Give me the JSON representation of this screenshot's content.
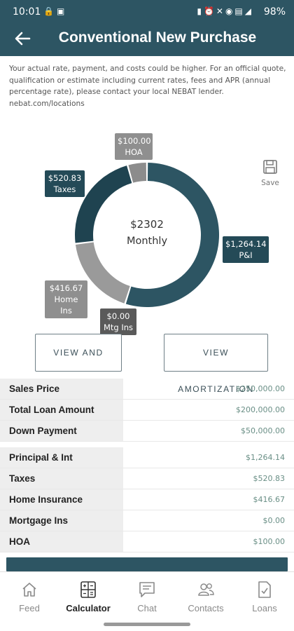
{
  "status_bar": {
    "time": "10:01",
    "battery": "98%"
  },
  "header": {
    "title": "Conventional New Purchase"
  },
  "disclaimer": "Your actual rate, payment, and costs could be higher. For an official quote, qualification or estimate including current rates, fees and APR (annual percentage rate), please contact your local NEBAT lender. nebat.com/locations",
  "donut": {
    "center_amount": "$2302",
    "center_label": "Monthly"
  },
  "chart_data": {
    "type": "pie",
    "center_text": [
      "$2302",
      "Monthly"
    ],
    "slices": [
      {
        "label": "P&I",
        "value_text": "$1,264.14",
        "value": 1264.14,
        "color": "#2d5563"
      },
      {
        "label": "Mtg Ins",
        "value_text": "$0.00",
        "value": 0.0,
        "color": "#5a5a5a"
      },
      {
        "label": "Home Ins",
        "value_text": "$416.67",
        "value": 416.67,
        "color": "#9a9a9a"
      },
      {
        "label": "Taxes",
        "value_text": "$520.83",
        "value": 520.83,
        "color": "#1f4350"
      },
      {
        "label": "HOA",
        "value_text": "$100.00",
        "value": 100.0,
        "color": "#8c8c8c"
      }
    ]
  },
  "save_label": "Save",
  "buttons": {
    "view_share": "VIEW AND SHARE",
    "view_amortization": "VIEW AMORTIZATION"
  },
  "loan_table": [
    {
      "label": "Sales Price",
      "value": "$250,000.00"
    },
    {
      "label": "Total Loan Amount",
      "value": "$200,000.00"
    },
    {
      "label": "Down Payment",
      "value": "$50,000.00"
    }
  ],
  "payment_table": [
    {
      "label": "Principal & Int",
      "value": "$1,264.14"
    },
    {
      "label": "Taxes",
      "value": "$520.83"
    },
    {
      "label": "Home Insurance",
      "value": "$416.67"
    },
    {
      "label": "Mortgage Ins",
      "value": "$0.00"
    },
    {
      "label": "HOA",
      "value": "$100.00"
    }
  ],
  "nav": [
    {
      "label": "Feed",
      "icon": "home-icon"
    },
    {
      "label": "Calculator",
      "icon": "calculator-icon",
      "active": true
    },
    {
      "label": "Chat",
      "icon": "chat-icon"
    },
    {
      "label": "Contacts",
      "icon": "contacts-icon"
    },
    {
      "label": "Loans",
      "icon": "document-check-icon"
    }
  ],
  "colors": {
    "primary": "#2d5563",
    "accent_value": "#6a8f86"
  }
}
